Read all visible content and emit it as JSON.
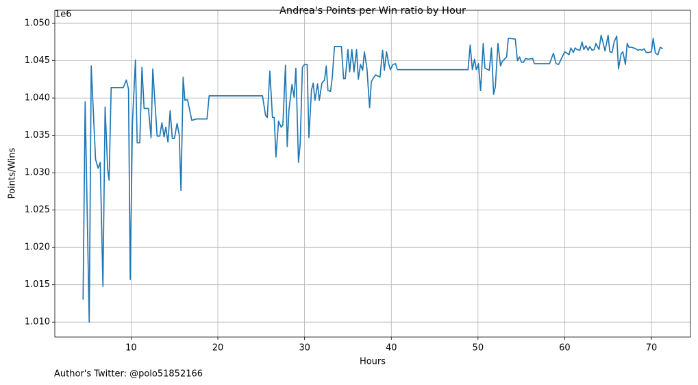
{
  "chart_data": {
    "type": "line",
    "title": "Andrea's Points per Win ratio by Hour",
    "x_label": "Hours",
    "y_label": "Points/Wins",
    "y_offset_label": "1e6",
    "footnote": "Author's Twitter: @polo51852166",
    "color": "#1f77b4",
    "grid": true,
    "xlim": [
      1.2,
      74.5
    ],
    "ylim": [
      1008000,
      1051750
    ],
    "xticks": [
      10,
      20,
      30,
      40,
      50,
      60,
      70
    ],
    "yticks": [
      {
        "value": 1010000,
        "label": "1.010"
      },
      {
        "value": 1015000,
        "label": "1.015"
      },
      {
        "value": 1020000,
        "label": "1.020"
      },
      {
        "value": 1025000,
        "label": "1.025"
      },
      {
        "value": 1030000,
        "label": "1.030"
      },
      {
        "value": 1035000,
        "label": "1.035"
      },
      {
        "value": 1040000,
        "label": "1.040"
      },
      {
        "value": 1045000,
        "label": "1.045"
      },
      {
        "value": 1050000,
        "label": "1.050"
      }
    ],
    "x": [
      4.46,
      4.7,
      5.17,
      5.4,
      5.9,
      6.2,
      6.44,
      6.75,
      7.0,
      7.3,
      7.46,
      7.7,
      9.1,
      9.45,
      9.7,
      9.9,
      10.15,
      10.5,
      10.7,
      11.0,
      11.25,
      11.5,
      12.0,
      12.3,
      12.5,
      13.0,
      13.3,
      13.55,
      13.8,
      14.0,
      14.25,
      14.5,
      14.75,
      15.0,
      15.3,
      15.55,
      15.75,
      16.0,
      16.2,
      16.5,
      17.0,
      17.5,
      18.75,
      19.0,
      25.15,
      25.5,
      25.7,
      26.0,
      26.3,
      26.5,
      26.7,
      27.0,
      27.3,
      27.5,
      27.8,
      28.0,
      28.2,
      28.55,
      28.8,
      29.0,
      29.3,
      29.5,
      29.75,
      30.0,
      30.3,
      30.5,
      30.8,
      31.0,
      31.2,
      31.5,
      31.7,
      32.0,
      32.3,
      32.5,
      32.7,
      33.0,
      33.2,
      33.45,
      34.25,
      34.5,
      34.7,
      35.0,
      35.2,
      35.45,
      35.7,
      36.0,
      36.2,
      36.45,
      36.7,
      36.9,
      37.2,
      37.5,
      37.7,
      38.0,
      38.2,
      38.7,
      39.0,
      39.2,
      39.45,
      39.7,
      39.9,
      40.2,
      40.5,
      40.7,
      48.85,
      49.1,
      49.35,
      49.6,
      49.8,
      50.05,
      50.3,
      50.6,
      50.8,
      51.3,
      51.55,
      51.8,
      52.0,
      52.3,
      52.6,
      52.8,
      53.3,
      53.5,
      54.3,
      54.55,
      54.8,
      55.0,
      55.25,
      55.5,
      55.8,
      56.3,
      56.5,
      58.25,
      58.7,
      59.0,
      59.3,
      59.5,
      60.0,
      60.5,
      60.7,
      61.0,
      61.2,
      61.4,
      61.75,
      62.0,
      62.2,
      62.45,
      62.7,
      62.9,
      63.15,
      63.4,
      63.6,
      63.95,
      64.2,
      64.4,
      64.65,
      65.0,
      65.2,
      65.45,
      65.7,
      66.0,
      66.2,
      66.5,
      66.7,
      67.0,
      67.2,
      67.4,
      67.7,
      68.2,
      68.45,
      68.7,
      68.9,
      69.15,
      69.4,
      69.7,
      70.0,
      70.2,
      70.45,
      70.75,
      71.0,
      71.3
    ],
    "values": [
      1013000,
      1039500,
      1010000,
      1044300,
      1031800,
      1030600,
      1031400,
      1014800,
      1038800,
      1030400,
      1029000,
      1041400,
      1041400,
      1042400,
      1041200,
      1015700,
      1036600,
      1045100,
      1034000,
      1034000,
      1044100,
      1038600,
      1038600,
      1034700,
      1043900,
      1034900,
      1034900,
      1036700,
      1034800,
      1036100,
      1034100,
      1038300,
      1034600,
      1034600,
      1036600,
      1035100,
      1027600,
      1042800,
      1039700,
      1039800,
      1037000,
      1037200,
      1037200,
      1040300,
      1040300,
      1037700,
      1037400,
      1043600,
      1037400,
      1037400,
      1032100,
      1036900,
      1036100,
      1036400,
      1044400,
      1033500,
      1038400,
      1041800,
      1040100,
      1044000,
      1031400,
      1033900,
      1044100,
      1044500,
      1044500,
      1034700,
      1041100,
      1042000,
      1039700,
      1041900,
      1039700,
      1042000,
      1042400,
      1044300,
      1041000,
      1040900,
      1042800,
      1046900,
      1046900,
      1042600,
      1042600,
      1046500,
      1043500,
      1046500,
      1043500,
      1046500,
      1042500,
      1044500,
      1043700,
      1046200,
      1043900,
      1038700,
      1042200,
      1042800,
      1043100,
      1042800,
      1046400,
      1043700,
      1046200,
      1044600,
      1043800,
      1044500,
      1044600,
      1043800,
      1043800,
      1047100,
      1043800,
      1045200,
      1043800,
      1044600,
      1041000,
      1047300,
      1044000,
      1043700,
      1046700,
      1040500,
      1041500,
      1047300,
      1044300,
      1044900,
      1045500,
      1048000,
      1047900,
      1045000,
      1045500,
      1044800,
      1044800,
      1045300,
      1045200,
      1045300,
      1044600,
      1044600,
      1046000,
      1044600,
      1044500,
      1045000,
      1046200,
      1045800,
      1046700,
      1046100,
      1046700,
      1046500,
      1046400,
      1047500,
      1046500,
      1047000,
      1046400,
      1046900,
      1046400,
      1046500,
      1047300,
      1046500,
      1048400,
      1047500,
      1046300,
      1048400,
      1046200,
      1046100,
      1047500,
      1048300,
      1043900,
      1045900,
      1046200,
      1044500,
      1047300,
      1046800,
      1046800,
      1046600,
      1046400,
      1046500,
      1046400,
      1046600,
      1046100,
      1046100,
      1046200,
      1048000,
      1046000,
      1045800,
      1046800,
      1046600
    ]
  }
}
